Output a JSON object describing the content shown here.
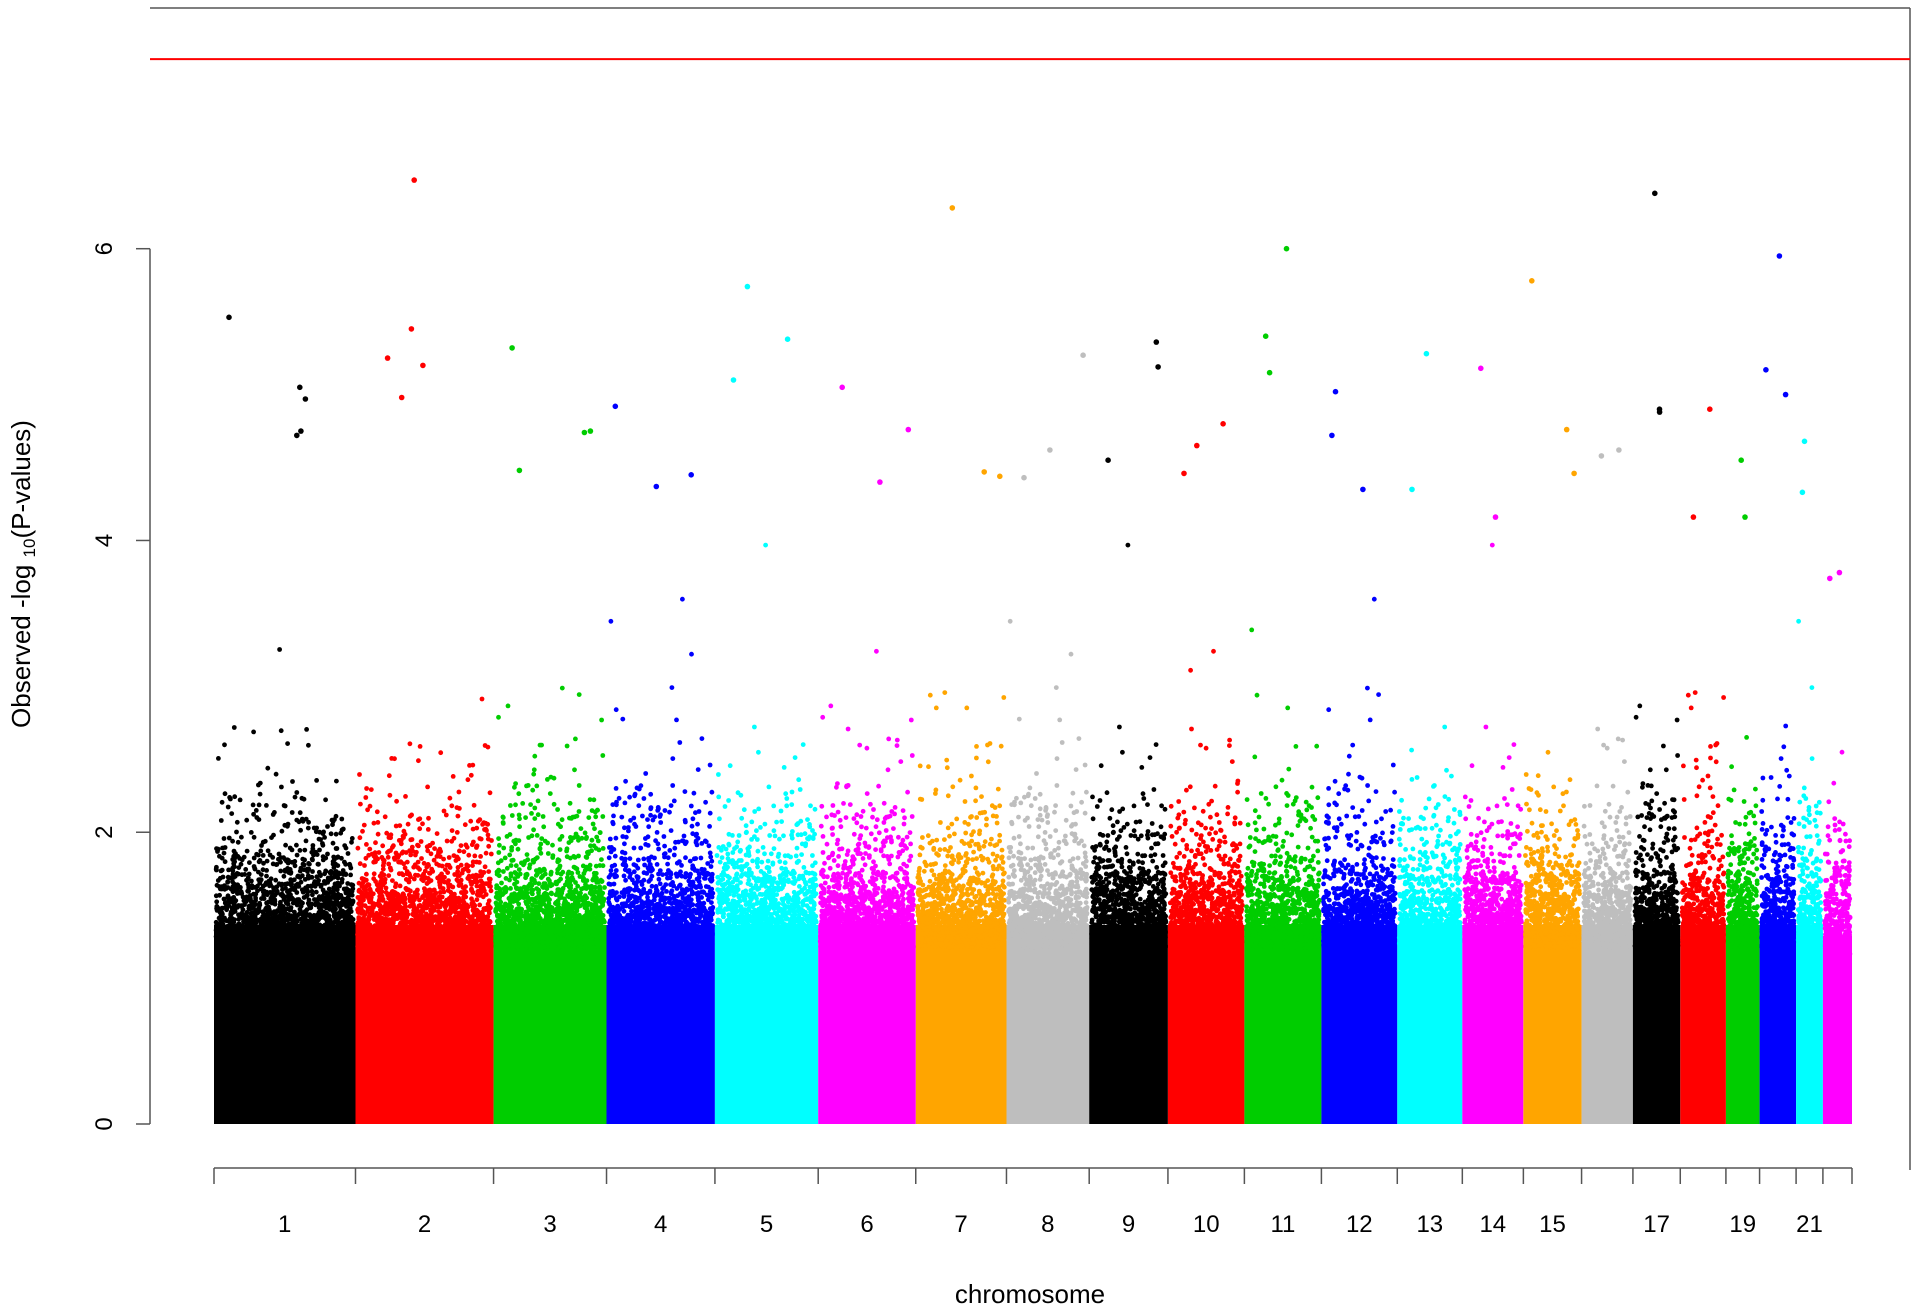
{
  "chart_data": {
    "type": "scatter",
    "title": "",
    "xlabel": "chromosome",
    "ylabel": {
      "prefix": "Observed -log ",
      "subscript": "10",
      "suffix": "(P-values)"
    },
    "ylim": [
      0,
      7.65
    ],
    "yticks": [
      0,
      2,
      4,
      6
    ],
    "ytick_labels": [
      "0",
      "2",
      "4",
      "6"
    ],
    "threshold_line": {
      "y": 7.3,
      "color": "#ff0000"
    },
    "x_tick_labels": [
      "1",
      "2",
      "3",
      "4",
      "5",
      "6",
      "7",
      "8",
      "9",
      "10",
      "11",
      "12",
      "13",
      "14",
      "15",
      "17",
      "19",
      "21"
    ],
    "chromosomes": [
      {
        "chr": "1",
        "color": "#000000",
        "length": 248,
        "max_y": 5.53,
        "peaks": [
          5.05,
          4.75,
          4.72,
          5.53,
          4.97
        ]
      },
      {
        "chr": "2",
        "color": "#ff0000",
        "length": 242,
        "max_y": 6.47,
        "peaks": [
          6.47,
          5.45,
          5.25,
          5.2,
          4.98
        ]
      },
      {
        "chr": "3",
        "color": "#00cd00",
        "length": 198,
        "max_y": 5.32,
        "peaks": [
          5.32,
          4.75,
          4.74,
          4.48
        ]
      },
      {
        "chr": "4",
        "color": "#0000ff",
        "length": 190,
        "max_y": 4.92,
        "peaks": [
          4.92,
          4.45,
          4.37
        ]
      },
      {
        "chr": "5",
        "color": "#00ffff",
        "length": 181,
        "max_y": 5.74,
        "peaks": [
          5.74,
          5.38,
          5.1
        ]
      },
      {
        "chr": "6",
        "color": "#ff00ff",
        "length": 171,
        "max_y": 5.05,
        "peaks": [
          5.05,
          4.76,
          4.4
        ]
      },
      {
        "chr": "7",
        "color": "#ffa500",
        "length": 159,
        "max_y": 6.28,
        "peaks": [
          6.28,
          4.47,
          4.44
        ]
      },
      {
        "chr": "8",
        "color": "#bebebe",
        "length": 145,
        "max_y": 5.27,
        "peaks": [
          5.27,
          4.62,
          4.43
        ]
      },
      {
        "chr": "9",
        "color": "#000000",
        "length": 138,
        "max_y": 5.36,
        "peaks": [
          5.36,
          5.19,
          4.55
        ]
      },
      {
        "chr": "10",
        "color": "#ff0000",
        "length": 134,
        "max_y": 4.8,
        "peaks": [
          4.8,
          4.65,
          4.46
        ]
      },
      {
        "chr": "11",
        "color": "#00cd00",
        "length": 135,
        "max_y": 6.0,
        "peaks": [
          6.0,
          5.4,
          5.15
        ]
      },
      {
        "chr": "12",
        "color": "#0000ff",
        "length": 133,
        "max_y": 5.02,
        "peaks": [
          5.02,
          4.72,
          4.35
        ]
      },
      {
        "chr": "13",
        "color": "#00ffff",
        "length": 114,
        "max_y": 5.28,
        "peaks": [
          5.28,
          4.35
        ]
      },
      {
        "chr": "14",
        "color": "#ff00ff",
        "length": 107,
        "max_y": 5.18,
        "peaks": [
          5.18,
          4.16
        ]
      },
      {
        "chr": "15",
        "color": "#ffa500",
        "length": 102,
        "max_y": 5.78,
        "peaks": [
          5.78,
          4.76,
          4.46
        ]
      },
      {
        "chr": "16",
        "color": "#bebebe",
        "length": 90,
        "max_y": 4.62,
        "peaks": [
          4.62,
          4.58
        ]
      },
      {
        "chr": "17",
        "color": "#000000",
        "length": 83,
        "max_y": 6.38,
        "peaks": [
          6.38,
          4.9,
          4.88
        ]
      },
      {
        "chr": "18",
        "color": "#ff0000",
        "length": 80,
        "max_y": 4.9,
        "peaks": [
          4.9,
          4.16
        ]
      },
      {
        "chr": "19",
        "color": "#00cd00",
        "length": 59,
        "max_y": 4.55,
        "peaks": [
          4.55,
          4.16
        ]
      },
      {
        "chr": "20",
        "color": "#0000ff",
        "length": 64,
        "max_y": 5.95,
        "peaks": [
          5.95,
          5.17,
          5.0
        ]
      },
      {
        "chr": "21",
        "color": "#00ffff",
        "length": 47,
        "max_y": 4.68,
        "peaks": [
          4.68,
          4.33
        ]
      },
      {
        "chr": "22",
        "color": "#ff00ff",
        "length": 51,
        "max_y": 3.78,
        "peaks": [
          3.78,
          3.74
        ]
      }
    ]
  }
}
